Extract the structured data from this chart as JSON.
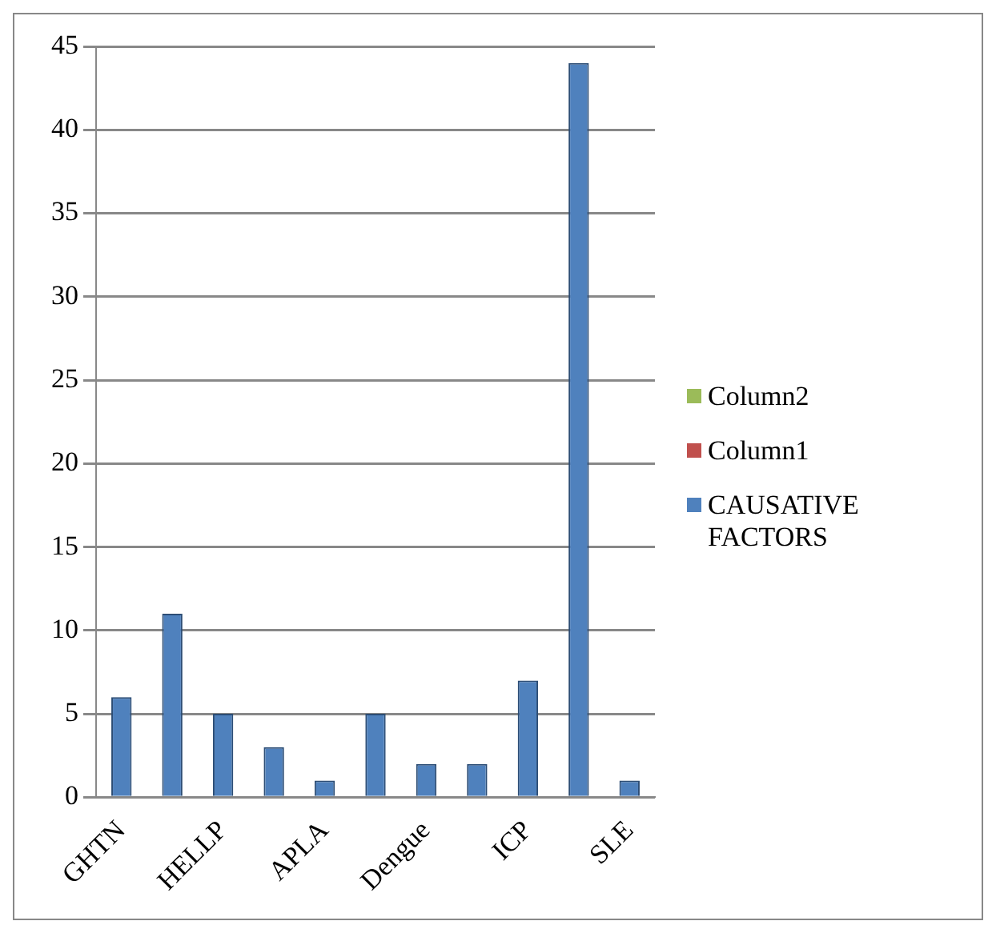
{
  "chart_data": {
    "type": "bar",
    "categories": [
      "GHTN",
      null,
      "HELLP",
      null,
      "APLA",
      null,
      "Dengue",
      null,
      "ICP",
      null,
      "SLE"
    ],
    "series": [
      {
        "name": "CAUSATIVE FACTORS",
        "color": "#4f81bd",
        "values": [
          6,
          11,
          5,
          3,
          1,
          5,
          2,
          2,
          7,
          44,
          1
        ]
      },
      {
        "name": "Column1",
        "color": "#c0504d",
        "values": [
          null,
          null,
          null,
          null,
          null,
          null,
          null,
          null,
          null,
          null,
          null
        ]
      },
      {
        "name": "Column2",
        "color": "#9bbb59",
        "values": [
          null,
          null,
          null,
          null,
          null,
          null,
          null,
          null,
          null,
          null,
          null
        ]
      }
    ],
    "ylim": [
      0,
      45
    ],
    "yticks": [
      0,
      5,
      10,
      15,
      20,
      25,
      30,
      35,
      40,
      45
    ],
    "grid": "y",
    "legend": "right"
  }
}
